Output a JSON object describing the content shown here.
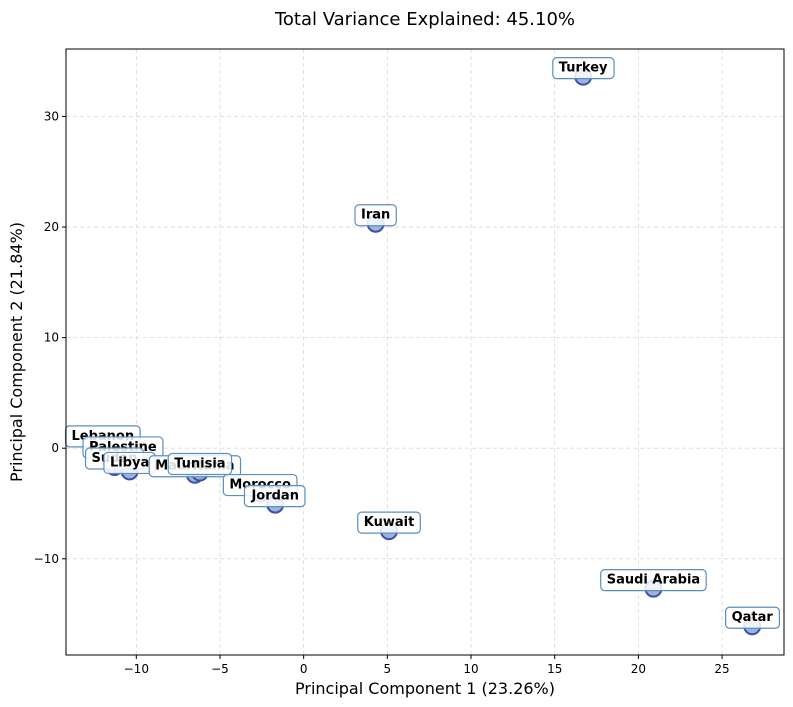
{
  "chart_data": {
    "type": "scatter",
    "title": "Total Variance Explained: 45.10%",
    "xlabel": "Principal Component 1 (23.26%)",
    "ylabel": "Principal Component 2 (21.84%)",
    "xlim": [
      -14.2,
      28.7
    ],
    "ylim": [
      -18.7,
      36.1
    ],
    "xticks": [
      -10,
      -5,
      0,
      5,
      10,
      15,
      20,
      25
    ],
    "yticks": [
      -10,
      0,
      10,
      20,
      30
    ],
    "xtick_labels": [
      "−10",
      "−5",
      "0",
      "5",
      "10",
      "15",
      "20",
      "25"
    ],
    "ytick_labels": [
      "−10",
      "0",
      "10",
      "20",
      "30"
    ],
    "grid": true,
    "marker_fill": "#9db4d9",
    "marker_edge": "#3a4fb0",
    "label_box_edge": "#5b8fc0",
    "points": [
      {
        "label": "Turkey",
        "x": 16.7,
        "y": 33.6
      },
      {
        "label": "Iran",
        "x": 4.3,
        "y": 20.3
      },
      {
        "label": "Lebanon",
        "x": -12.0,
        "y": 0.3
      },
      {
        "label": "Palestine",
        "x": -10.8,
        "y": -0.7
      },
      {
        "label": "Sudan",
        "x": -11.3,
        "y": -1.7
      },
      {
        "label": "Libya",
        "x": -10.4,
        "y": -2.1
      },
      {
        "label": "Mauritania",
        "x": -6.5,
        "y": -2.4
      },
      {
        "label": "Tunisia",
        "x": -6.2,
        "y": -2.2
      },
      {
        "label": "Morocco",
        "x": -2.6,
        "y": -4.1
      },
      {
        "label": "Jordan",
        "x": -1.7,
        "y": -5.1
      },
      {
        "label": "Kuwait",
        "x": 5.1,
        "y": -7.5
      },
      {
        "label": "Saudi Arabia",
        "x": 20.9,
        "y": -12.7
      },
      {
        "label": "Qatar",
        "x": 26.8,
        "y": -16.1
      }
    ]
  }
}
